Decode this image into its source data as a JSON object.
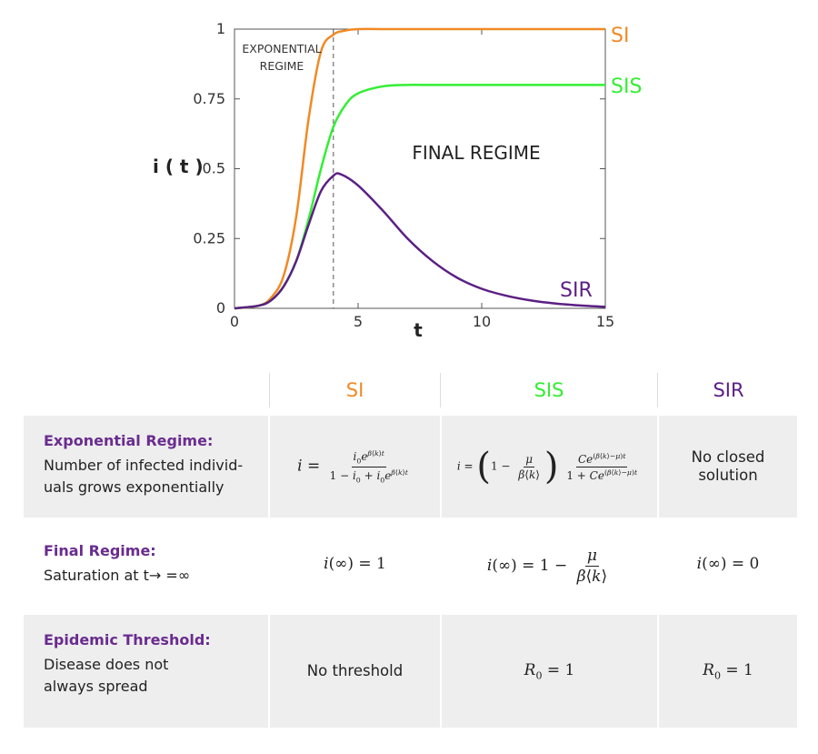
{
  "chart_data": {
    "type": "line",
    "xlabel": "t",
    "ylabel": "i ( t )",
    "xlim": [
      0,
      15
    ],
    "ylim": [
      0,
      1
    ],
    "x_ticks": [
      "0",
      "5",
      "10",
      "15"
    ],
    "y_ticks": [
      "0",
      "0.25",
      "0.5",
      "0.75",
      "1"
    ],
    "grid": false,
    "series": [
      {
        "name": "SI",
        "color": "#f08a24",
        "x": [
          0,
          1,
          1.5,
          2,
          2.5,
          3,
          3.5,
          4,
          4.5,
          5,
          6,
          8,
          10,
          15
        ],
        "y": [
          0,
          0.01,
          0.04,
          0.12,
          0.33,
          0.68,
          0.92,
          0.98,
          0.995,
          1.0,
          1.0,
          1.0,
          1.0,
          1.0
        ]
      },
      {
        "name": "SIS",
        "color": "#33ee33",
        "x": [
          0,
          1,
          1.5,
          2,
          2.5,
          3,
          3.5,
          4,
          4.5,
          5,
          6,
          7,
          8,
          10,
          15
        ],
        "y": [
          0,
          0.01,
          0.03,
          0.08,
          0.17,
          0.32,
          0.5,
          0.65,
          0.73,
          0.77,
          0.795,
          0.8,
          0.8,
          0.8,
          0.8
        ]
      },
      {
        "name": "SIR",
        "color": "#5b1f84",
        "x": [
          0,
          1,
          1.5,
          2,
          2.5,
          3,
          3.5,
          4,
          4.3,
          5,
          6,
          7,
          8,
          9,
          10,
          11,
          12,
          13,
          14,
          15
        ],
        "y": [
          0,
          0.01,
          0.03,
          0.08,
          0.17,
          0.3,
          0.42,
          0.475,
          0.48,
          0.44,
          0.35,
          0.25,
          0.17,
          0.11,
          0.07,
          0.045,
          0.028,
          0.017,
          0.01,
          0.005
        ]
      }
    ],
    "annotations": {
      "exponential_regime": [
        "EXPONENTIAL",
        "REGIME"
      ],
      "final_regime": "FINAL REGIME",
      "threshold_t": 4
    }
  },
  "table": {
    "columns": [
      "SI",
      "SIS",
      "SIR"
    ],
    "column_colors": [
      "#f08a24",
      "#33ee33",
      "#5b1f84"
    ],
    "rows": [
      {
        "title": "Exponential Regime:",
        "desc": "Number of infected individ-uals grows exponentially",
        "si": "i = i0 e^{β⟨k⟩t} / (1 − i0 + i0 e^{β⟨k⟩t})",
        "sis": "i = (1 − μ/(β⟨k⟩)) · C e^{(β⟨k⟩−μ)t} / (1 + C e^{(β⟨k⟩−μ)t})",
        "sir": "No closed solution"
      },
      {
        "title": "Final Regime:",
        "desc": "Saturation at t→ =∞",
        "si": "i(∞) = 1",
        "sis": "i(∞) = 1 − μ/(β⟨k⟩)",
        "sir": "i(∞) = 0"
      },
      {
        "title": "Epidemic Threshold:",
        "desc": "Disease does not always spread",
        "si": "No threshold",
        "sis": "R0 = 1",
        "sir": "R0 = 1"
      }
    ]
  }
}
